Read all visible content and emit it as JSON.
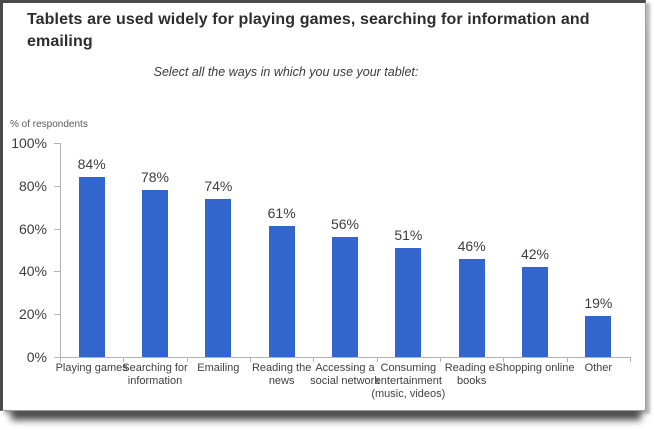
{
  "chart_data": {
    "type": "bar",
    "title": "Tablets are used widely for playing games, searching for information and emailing",
    "subtitle": "Select all the ways in which you use your tablet:",
    "ylabel": "% of respondents",
    "xlabel": "",
    "categories": [
      "Playing games",
      "Searching for information",
      "Emailing",
      "Reading the news",
      "Accessing a social network",
      "Consuming entertainment (music, videos)",
      "Reading e-books",
      "Shopping online",
      "Other"
    ],
    "values": [
      84,
      78,
      74,
      61,
      56,
      51,
      46,
      42,
      19
    ],
    "value_labels": [
      "84%",
      "78%",
      "74%",
      "61%",
      "56%",
      "51%",
      "46%",
      "42%",
      "19%"
    ],
    "y_ticks": [
      0,
      20,
      40,
      60,
      80,
      100
    ],
    "y_tick_labels": [
      "0%",
      "20%",
      "40%",
      "60%",
      "80%",
      "100%"
    ],
    "ylim": [
      0,
      100
    ],
    "grid": false,
    "legend": "none",
    "bar_color": "#3366cc",
    "axis_color": "#b3b3b3",
    "label_color": "#3d3d3d"
  }
}
